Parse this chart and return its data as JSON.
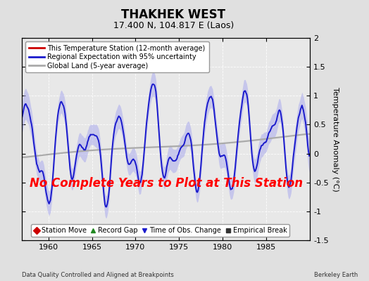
{
  "title": "THAKHEK WEST",
  "subtitle": "17.400 N, 104.817 E (Laos)",
  "ylabel": "Temperature Anomaly (°C)",
  "xlabel_left": "Data Quality Controlled and Aligned at Breakpoints",
  "xlabel_right": "Berkeley Earth",
  "no_data_text": "No Complete Years to Plot at This Station",
  "ylim": [
    -1.5,
    2.0
  ],
  "xlim": [
    1957.0,
    1990.0
  ],
  "xticks": [
    1960,
    1965,
    1970,
    1975,
    1980,
    1985
  ],
  "yticks_right": [
    -1.5,
    -1.0,
    -0.5,
    0.0,
    0.5,
    1.0,
    1.5,
    2.0
  ],
  "ytick_labels_right": [
    "-1.5",
    "-1",
    "-0.5",
    "0",
    "0.5",
    "1",
    "1.5",
    "2"
  ],
  "bg_color": "#e0e0e0",
  "plot_bg_color": "#e8e8e8",
  "regional_color": "#1a1acc",
  "band_color": "#aaaaee",
  "global_color": "#aaaaaa",
  "station_color": "#cc0000",
  "no_data_color": "red",
  "no_data_fontsize": 12,
  "title_fontsize": 12,
  "subtitle_fontsize": 9,
  "tick_fontsize": 8,
  "ylabel_fontsize": 8,
  "legend1_fontsize": 7,
  "legend2_fontsize": 7,
  "legend1_entries": [
    {
      "label": "This Temperature Station (12-month average)",
      "color": "#cc0000"
    },
    {
      "label": "Regional Expectation with 95% uncertainty",
      "color": "#1a1acc"
    },
    {
      "label": "Global Land (5-year average)",
      "color": "#aaaaaa"
    }
  ],
  "legend2_entries": [
    {
      "label": "Station Move",
      "color": "#cc0000",
      "marker": "D"
    },
    {
      "label": "Record Gap",
      "color": "#228822",
      "marker": "^"
    },
    {
      "label": "Time of Obs. Change",
      "color": "#1a1acc",
      "marker": "v"
    },
    {
      "label": "Empirical Break",
      "color": "#333333",
      "marker": "s"
    }
  ]
}
